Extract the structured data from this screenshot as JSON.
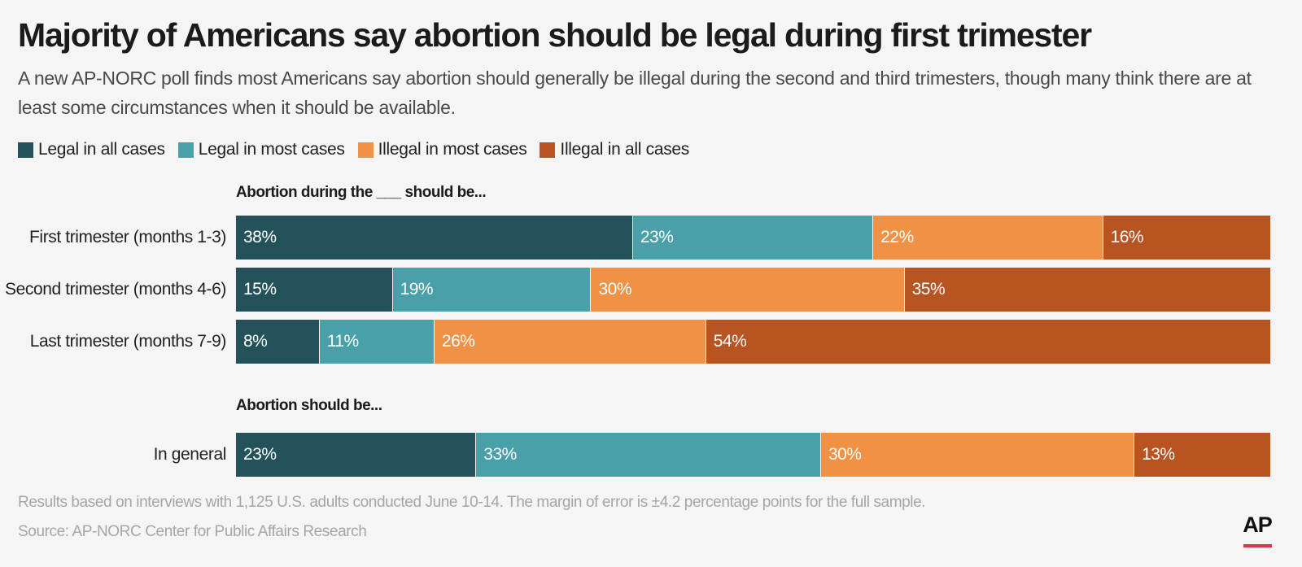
{
  "title": "Majority of Americans say abortion should be legal during first trimester",
  "subtitle": "A new AP-NORC poll finds most Americans say abortion should generally be illegal during the second and third trimesters, though many think there are at least some circumstances when it should be available.",
  "footnote": "Results based on interviews with 1,125 U.S. adults conducted June 10-14. The margin of error is ±4.2 percentage points for the full sample.",
  "source": "Source: AP-NORC Center for Public Affairs Research",
  "logo_text": "AP",
  "chart_data": {
    "type": "bar",
    "orientation": "horizontal",
    "stacked": true,
    "unit": "%",
    "legend_position": "top-left",
    "series": [
      {
        "name": "Legal in all cases",
        "color": "#23525a"
      },
      {
        "name": "Legal in most cases",
        "color": "#49a0a8"
      },
      {
        "name": "Illegal in most cases",
        "color": "#f09245"
      },
      {
        "name": "Illegal in all cases",
        "color": "#b85422"
      }
    ],
    "groups": [
      {
        "label": "Abortion during the ___ should be...",
        "rows": [
          {
            "category": "First trimester (months 1-3)",
            "values": [
              38,
              23,
              22,
              16
            ]
          },
          {
            "category": "Second trimester (months 4-6)",
            "values": [
              15,
              19,
              30,
              35
            ]
          },
          {
            "category": "Last trimester (months 7-9)",
            "values": [
              8,
              11,
              26,
              54
            ]
          }
        ]
      },
      {
        "label": "Abortion should be...",
        "rows": [
          {
            "category": "In general",
            "values": [
              23,
              33,
              30,
              13
            ]
          }
        ]
      }
    ]
  }
}
